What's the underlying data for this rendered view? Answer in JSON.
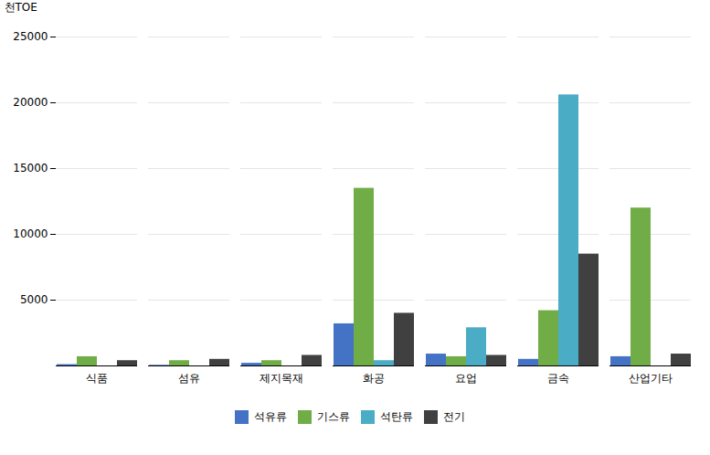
{
  "chart_data": {
    "type": "bar",
    "ylabel": "천TOE",
    "categories": [
      "식품",
      "섬유",
      "제지목재",
      "화공",
      "요업",
      "금속",
      "산업기타"
    ],
    "series": [
      {
        "name": "석유류",
        "color": "#4472C4",
        "values": [
          100,
          50,
          200,
          3200,
          900,
          500,
          700
        ]
      },
      {
        "name": "기스류",
        "color": "#70AD47",
        "values": [
          700,
          400,
          400,
          13500,
          700,
          4200,
          12000
        ]
      },
      {
        "name": "석탄류",
        "color": "#4BACC6",
        "values": [
          0,
          0,
          0,
          400,
          2900,
          20600,
          0
        ]
      },
      {
        "name": "전기",
        "color": "#404040",
        "values": [
          400,
          500,
          800,
          4000,
          800,
          8500,
          900
        ]
      }
    ],
    "ylim": [
      0,
      25000
    ],
    "yticks": [
      5000,
      10000,
      15000,
      20000,
      25000
    ],
    "grid": true,
    "legend": "bottom"
  }
}
